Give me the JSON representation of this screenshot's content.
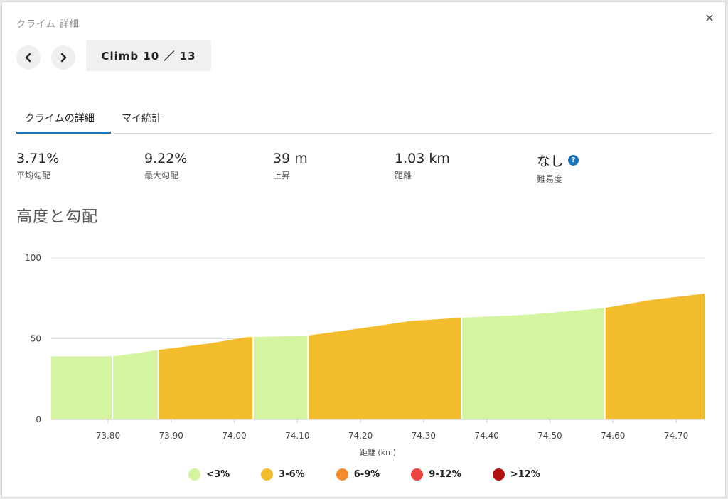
{
  "header": {
    "title": "クライム 詳細",
    "close_icon": "close-icon"
  },
  "nav": {
    "prev_icon": "chevron-left-icon",
    "next_icon": "chevron-right-icon",
    "climb_label": "Climb 10 ／ 13"
  },
  "tabs": [
    {
      "label": "クライムの詳細",
      "active": true
    },
    {
      "label": "マイ統計",
      "active": false
    }
  ],
  "stats": [
    {
      "value": "3.71%",
      "label": "平均勾配"
    },
    {
      "value": "9.22%",
      "label": "最大勾配"
    },
    {
      "value": "39 m",
      "label": "上昇"
    },
    {
      "value": "1.03 km",
      "label": "距離"
    },
    {
      "value": "なし",
      "label": "難易度",
      "help": "?"
    }
  ],
  "section_title": "高度と勾配",
  "chart_data": {
    "type": "area",
    "xlabel": "距離 (km)",
    "ylabel": "",
    "xlim": [
      73.71,
      74.745
    ],
    "ylim": [
      0,
      100
    ],
    "yticks": [
      0,
      50,
      100
    ],
    "xticks": [
      73.8,
      73.9,
      74.0,
      74.1,
      74.2,
      74.3,
      74.4,
      74.5,
      74.6,
      74.7
    ],
    "xtick_labels": [
      "73.80",
      "73.90",
      "74.00",
      "74.10",
      "74.20",
      "74.30",
      "74.40",
      "74.50",
      "74.60",
      "74.70"
    ],
    "grid": true,
    "segments": [
      {
        "grade": "<3%",
        "color": "#d4f4a0",
        "points": [
          [
            73.71,
            39
          ],
          [
            73.807,
            39
          ]
        ]
      },
      {
        "grade": "<3%",
        "color": "#d4f4a0",
        "points": [
          [
            73.807,
            39
          ],
          [
            73.88,
            43
          ]
        ]
      },
      {
        "grade": "3-6%",
        "color": "#f2bc2c",
        "points": [
          [
            73.88,
            43
          ],
          [
            73.96,
            47
          ],
          [
            74.02,
            51
          ],
          [
            74.03,
            51
          ]
        ]
      },
      {
        "grade": "<3%",
        "color": "#d4f4a0",
        "points": [
          [
            74.03,
            51
          ],
          [
            74.117,
            52
          ]
        ]
      },
      {
        "grade": "3-6%",
        "color": "#f2bc2c",
        "points": [
          [
            74.117,
            52
          ],
          [
            74.21,
            57
          ],
          [
            74.28,
            61
          ],
          [
            74.36,
            63
          ]
        ]
      },
      {
        "grade": "<3%",
        "color": "#d4f4a0",
        "points": [
          [
            74.36,
            63
          ],
          [
            74.47,
            65
          ],
          [
            74.587,
            69
          ]
        ]
      },
      {
        "grade": "3-6%",
        "color": "#f2bc2c",
        "points": [
          [
            74.587,
            69
          ],
          [
            74.66,
            74
          ],
          [
            74.745,
            78
          ]
        ]
      }
    ]
  },
  "legend": [
    {
      "label": "<3%",
      "color": "#d4f4a0"
    },
    {
      "label": "3-6%",
      "color": "#f2bc2c"
    },
    {
      "label": "6-9%",
      "color": "#f58b2a"
    },
    {
      "label": "9-12%",
      "color": "#ee4343"
    },
    {
      "label": ">12%",
      "color": "#b31010"
    }
  ]
}
